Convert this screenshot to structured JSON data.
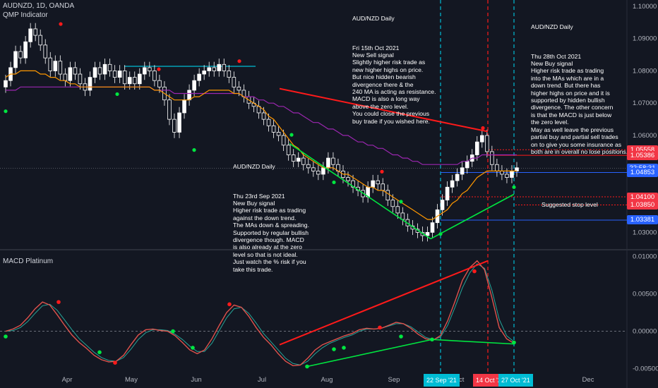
{
  "header": {
    "symbol": "AUDNZD, 1D, OANDA",
    "indicator": "QMP Indicator"
  },
  "lower_pane": {
    "title": "MACD Platinum"
  },
  "notes": {
    "oct15": {
      "title": "AUD/NZD Daily",
      "body": "Fri 15th Oct 2021\nNew Sell signal\nSlightly higher risk trade as\nnew higher highs on price.\nBut nice hidden bearish\ndivergence there & the\n240 MA is acting as resistance.\nMACD is also a long way\nabove the zero level.\nYou could close the previous\nbuy trade if you wished here."
    },
    "oct28": {
      "title": "AUD/NZD Daily",
      "body": "Thu 28th Oct 2021\nNew Buy signal\nHigher risk trade as trading\ninto the MAs which are in a\ndown trend. But there has\nhigher highs on price and it is\nsupported by hidden bullish\ndivergence. The other concern\nis that the MACD is just below\nthe zero level.\nMay as well leave the previous\npartial buy and partial sell trades\non to give you some insurance as\nboth are in overall no lose positions."
    },
    "sep23": {
      "title": "AUD/NZD Daily",
      "body": "Thu 23rd Sep 2021\nNew Buy signal\nHigher risk trade as trading\nagainst the down trend.\nThe MAs down & spreading.\nSupported by regular bullish\ndivergence though. MACD\nis also already at the zero\nlevel so that is not ideal.\nJust watch the % risk if you\ntake this trade."
    },
    "stop": "Suggested stop level"
  },
  "price_tags": [
    {
      "label": "1.05558",
      "color": "#f23645",
      "value": 1.05558
    },
    {
      "label": "1.05386",
      "color": "#f23645",
      "value": 1.05386
    },
    {
      "label": "22:58:31",
      "color": "#2962ff",
      "value": 1.04982
    },
    {
      "label": "1.04853",
      "color": "#2962ff",
      "value": 1.04853
    },
    {
      "label": "1.04100",
      "color": "#f23645",
      "value": 1.041
    },
    {
      "label": "1.03850",
      "color": "#f23645",
      "value": 1.0385
    },
    {
      "label": "1.03381",
      "color": "#2962ff",
      "value": 1.03381
    }
  ],
  "price_axis": [
    "1.10000",
    "1.09000",
    "1.08000",
    "1.07000",
    "1.06000",
    "1.03000"
  ],
  "macd_axis": [
    "0.01000",
    "0.00500",
    "0.00000",
    "-0.00500"
  ],
  "date_axis": [
    "Apr",
    "May",
    "Jun",
    "Jul",
    "Aug",
    "Sep",
    "Oct",
    "Dec"
  ],
  "vline_tags": [
    {
      "label": "22 Sep '21",
      "color": "#00bcd4"
    },
    {
      "label": "14 Oct '21",
      "color": "#f23645"
    },
    {
      "label": "27 Oct '21",
      "color": "#00bcd4"
    }
  ],
  "colors": {
    "bg": "#131722",
    "up": "#ffffff",
    "down": "#ffffff",
    "ma_fast": "#ff9800",
    "ma_slow": "#9c27b0",
    "trend_up": "#00e640",
    "trend_down": "#ff1a1a",
    "level": "#00bcd4",
    "macd": "#e0524c",
    "signal": "#26a69a"
  },
  "chart_data": [
    {
      "type": "candlestick",
      "title": "AUDNZD, 1D, OANDA",
      "ylim": [
        1.0255,
        1.1015
      ],
      "close": [
        1.077,
        1.081,
        1.086,
        1.084,
        1.089,
        1.093,
        1.091,
        1.088,
        1.084,
        1.08,
        1.083,
        1.079,
        1.077,
        1.081,
        1.079,
        1.076,
        1.074,
        1.078,
        1.081,
        1.079,
        1.082,
        1.08,
        1.078,
        1.08,
        1.076,
        1.078,
        1.076,
        1.079,
        1.081,
        1.08,
        1.077,
        1.075,
        1.071,
        1.065,
        1.061,
        1.067,
        1.071,
        1.074,
        1.077,
        1.079,
        1.08,
        1.081,
        1.08,
        1.082,
        1.08,
        1.078,
        1.075,
        1.074,
        1.072,
        1.07,
        1.069,
        1.067,
        1.065,
        1.063,
        1.061,
        1.06,
        1.057,
        1.054,
        1.052,
        1.053,
        1.051,
        1.05,
        1.049,
        1.048,
        1.05,
        1.053,
        1.051,
        1.049,
        1.047,
        1.046,
        1.044,
        1.043,
        1.041,
        1.044,
        1.046,
        1.045,
        1.043,
        1.04,
        1.038,
        1.036,
        1.034,
        1.032,
        1.031,
        1.03,
        1.029,
        1.03,
        1.033,
        1.037,
        1.04,
        1.044,
        1.046,
        1.048,
        1.05,
        1.052,
        1.054,
        1.058,
        1.06,
        1.055,
        1.051,
        1.049,
        1.048,
        1.047,
        1.049,
        1.05
      ],
      "ma_fast": [
        1.078,
        1.079,
        1.079,
        1.08,
        1.08,
        1.08,
        1.08,
        1.079,
        1.079,
        1.078,
        1.078,
        1.077,
        1.077,
        1.076,
        1.076,
        1.075,
        1.075,
        1.075,
        1.075,
        1.075,
        1.075,
        1.075,
        1.075,
        1.075,
        1.075,
        1.075,
        1.075,
        1.075,
        1.075,
        1.075,
        1.074,
        1.074,
        1.073,
        1.072,
        1.071,
        1.071,
        1.071,
        1.071,
        1.072,
        1.072,
        1.073,
        1.074,
        1.074,
        1.074,
        1.074,
        1.074,
        1.073,
        1.073,
        1.072,
        1.071,
        1.07,
        1.069,
        1.068,
        1.066,
        1.065,
        1.063,
        1.061,
        1.059,
        1.057,
        1.056,
        1.054,
        1.053,
        1.052,
        1.051,
        1.05,
        1.05,
        1.05,
        1.049,
        1.048,
        1.048,
        1.047,
        1.046,
        1.045,
        1.044,
        1.044,
        1.043,
        1.043,
        1.042,
        1.041,
        1.04,
        1.039,
        1.038,
        1.037,
        1.036,
        1.035,
        1.034,
        1.034,
        1.035,
        1.036,
        1.037,
        1.039,
        1.04,
        1.042,
        1.043,
        1.045,
        1.047,
        1.048,
        1.049,
        1.049,
        1.049,
        1.049,
        1.049,
        1.049,
        1.049
      ],
      "ma_slow": [
        1.074,
        1.074,
        1.074,
        1.075,
        1.075,
        1.075,
        1.075,
        1.075,
        1.075,
        1.075,
        1.075,
        1.075,
        1.075,
        1.075,
        1.075,
        1.075,
        1.075,
        1.075,
        1.075,
        1.075,
        1.075,
        1.075,
        1.075,
        1.075,
        1.075,
        1.075,
        1.075,
        1.075,
        1.075,
        1.075,
        1.074,
        1.074,
        1.074,
        1.074,
        1.073,
        1.073,
        1.073,
        1.073,
        1.073,
        1.073,
        1.073,
        1.073,
        1.073,
        1.073,
        1.073,
        1.073,
        1.073,
        1.073,
        1.072,
        1.072,
        1.072,
        1.071,
        1.071,
        1.07,
        1.07,
        1.069,
        1.069,
        1.068,
        1.067,
        1.067,
        1.066,
        1.065,
        1.064,
        1.064,
        1.063,
        1.062,
        1.062,
        1.061,
        1.06,
        1.06,
        1.059,
        1.058,
        1.058,
        1.057,
        1.057,
        1.056,
        1.056,
        1.055,
        1.054,
        1.054,
        1.053,
        1.053,
        1.052,
        1.052,
        1.051,
        1.051,
        1.051,
        1.051,
        1.051,
        1.051,
        1.051,
        1.051,
        1.052,
        1.052,
        1.053,
        1.053,
        1.054,
        1.054,
        1.054,
        1.054,
        1.054,
        1.054,
        1.054,
        1.054
      ]
    },
    {
      "type": "line",
      "title": "MACD Platinum",
      "ylim": [
        -0.0055,
        0.0105
      ],
      "macd": [
        0.0,
        0.0003,
        0.0008,
        0.0018,
        0.003,
        0.0039,
        0.0035,
        0.0022,
        0.0008,
        -0.0005,
        -0.0015,
        -0.0023,
        -0.0032,
        -0.0038,
        -0.0041,
        -0.004,
        -0.0032,
        -0.0018,
        -0.0005,
        0.0002,
        0.0003,
        0.0001,
        0.0,
        -0.0006,
        -0.0015,
        -0.0025,
        -0.003,
        -0.0025,
        -0.001,
        0.0008,
        0.0025,
        0.0035,
        0.0032,
        0.002,
        0.0005,
        -0.0008,
        -0.0018,
        -0.003,
        -0.004,
        -0.0046,
        -0.0045,
        -0.0036,
        -0.0025,
        -0.0018,
        -0.0014,
        -0.001,
        -0.0006,
        -0.0003,
        0.0002,
        0.0004,
        0.0003,
        0.0004,
        0.0008,
        0.0012,
        0.001,
        0.0004,
        -0.0004,
        -0.001,
        -0.0012,
        -0.0006,
        0.0014,
        0.004,
        0.0068,
        0.0085,
        0.0094,
        0.0082,
        0.0045,
        0.0005,
        -0.001,
        -0.0016
      ],
      "signal": [
        0.0,
        0.0001,
        0.0005,
        0.0013,
        0.0024,
        0.0034,
        0.0036,
        0.0028,
        0.0015,
        0.0002,
        -0.001,
        -0.0019,
        -0.0028,
        -0.0035,
        -0.0039,
        -0.004,
        -0.0035,
        -0.0024,
        -0.0011,
        -0.0002,
        0.0002,
        0.0002,
        0.0001,
        -0.0004,
        -0.0011,
        -0.002,
        -0.0027,
        -0.0027,
        -0.0016,
        0.0001,
        0.0018,
        0.003,
        0.0032,
        0.0024,
        0.0011,
        -0.0003,
        -0.0014,
        -0.0025,
        -0.0036,
        -0.0043,
        -0.0045,
        -0.004,
        -0.003,
        -0.0022,
        -0.0016,
        -0.0012,
        -0.0008,
        -0.0005,
        0.0,
        0.0003,
        0.0003,
        0.0004,
        0.0007,
        0.001,
        0.001,
        0.0006,
        -0.0001,
        -0.0008,
        -0.0011,
        -0.0008,
        0.0008,
        0.0032,
        0.0058,
        0.0078,
        0.009,
        0.0084,
        0.0055,
        0.0016,
        -0.0006,
        -0.0014
      ]
    }
  ]
}
